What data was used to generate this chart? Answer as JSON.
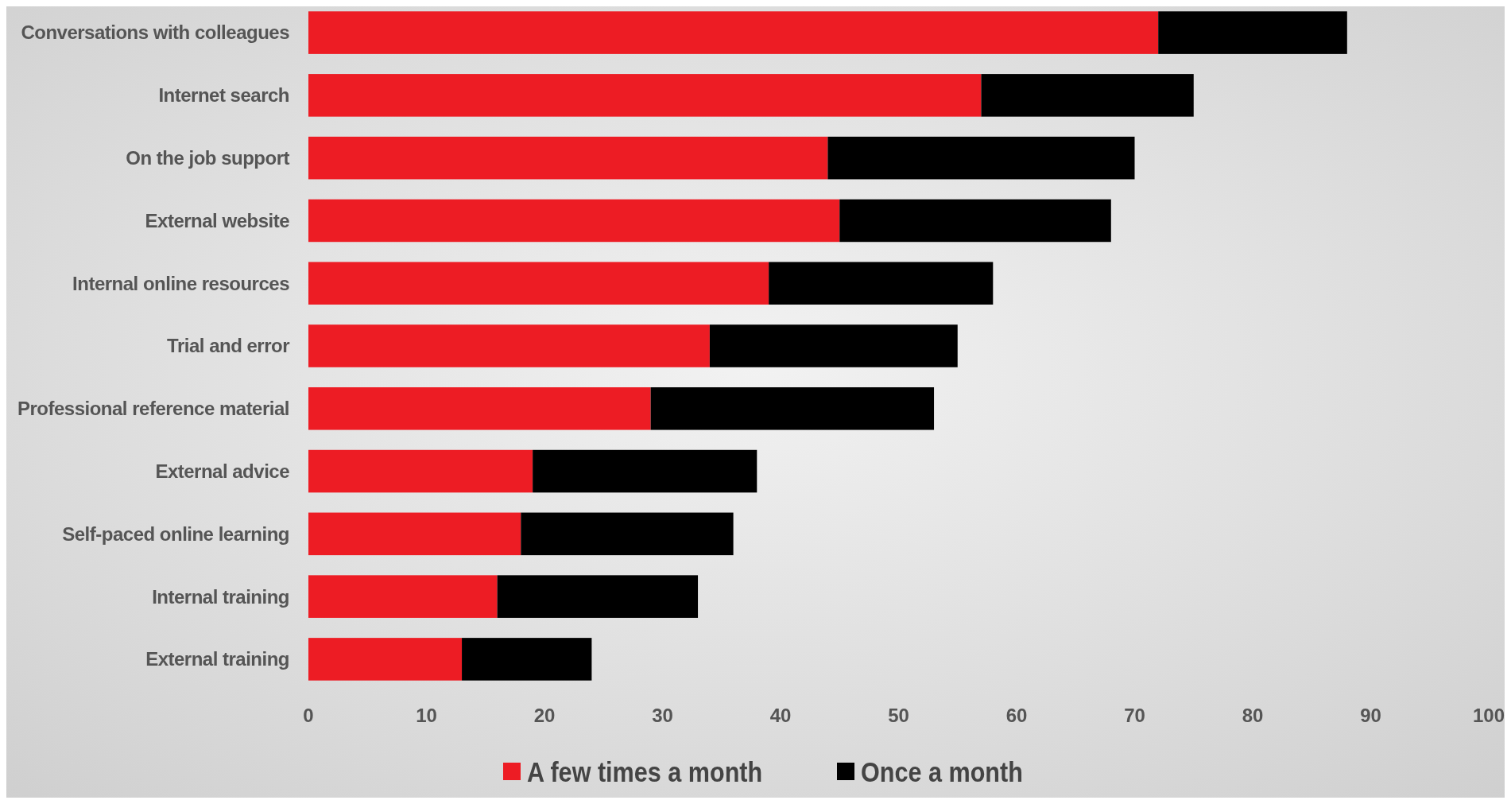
{
  "chart_data": {
    "type": "bar",
    "orientation": "horizontal",
    "stacked": true,
    "categories": [
      "Conversations with colleagues",
      "Internet search",
      "On the job support",
      "External website",
      "Internal online resources",
      "Trial and error",
      "Professional reference material",
      "External advice",
      "Self-paced online learning",
      "Internal training",
      "External training"
    ],
    "series": [
      {
        "name": "A few times a month",
        "color": "#ed1c24",
        "values": [
          72,
          57,
          44,
          45,
          39,
          34,
          29,
          19,
          18,
          16,
          13
        ]
      },
      {
        "name": "Once a month",
        "color": "#000000",
        "values": [
          16,
          18,
          26,
          23,
          19,
          21,
          24,
          19,
          18,
          17,
          11
        ]
      }
    ],
    "xlim": [
      0,
      100
    ],
    "xticks": [
      0,
      10,
      20,
      30,
      40,
      50,
      60,
      70,
      80,
      90,
      100
    ],
    "legend": "bottom"
  }
}
